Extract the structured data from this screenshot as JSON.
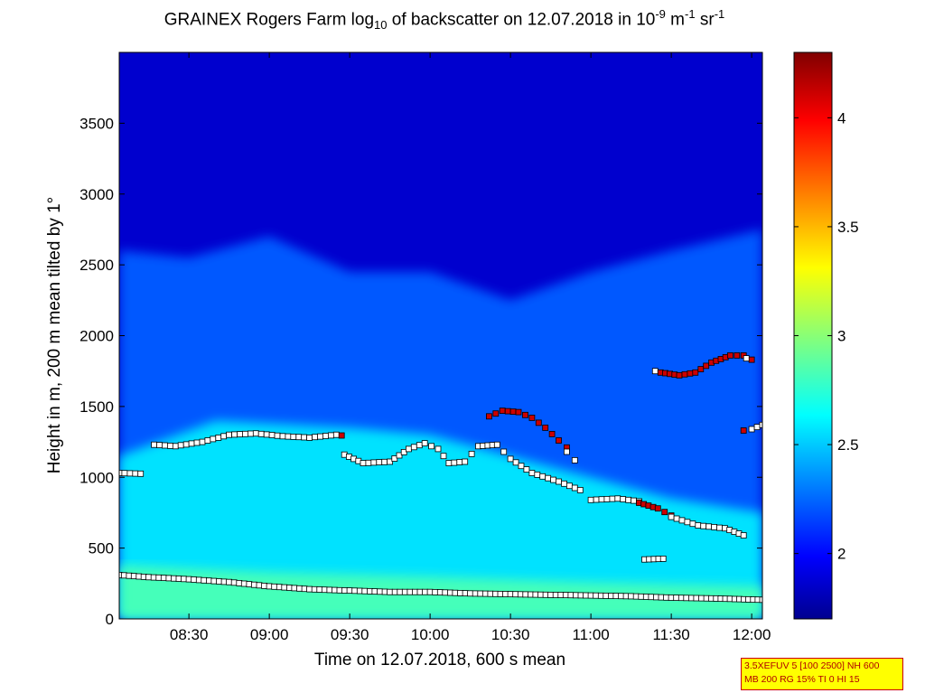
{
  "chart_data": {
    "type": "heatmap",
    "title": {
      "prefix": "GRAINEX Rogers Farm log",
      "sub": "10",
      "mid": " of backscatter on 12.07.2018 in 10",
      "sup1": "-9",
      "mid2": " m",
      "sup2": "-1",
      "mid3": " sr",
      "sup3": "-1"
    },
    "xlabel": "Time on 12.07.2018, 600 s mean",
    "ylabel": "Height in m, 200 m mean tilted by 1°",
    "xlim": [
      "08:04",
      "12:04"
    ],
    "ylim": [
      0,
      4000
    ],
    "x_ticks": [
      "08:30",
      "09:00",
      "09:30",
      "10:00",
      "10:30",
      "11:00",
      "11:30",
      "12:00"
    ],
    "y_ticks": [
      0,
      500,
      1000,
      1500,
      2000,
      2500,
      3000,
      3500
    ],
    "colorbar": {
      "range": [
        1.7,
        4.3
      ],
      "ticks": [
        "2",
        "2.5",
        "3",
        "3.5",
        "4"
      ],
      "colormap": "jet"
    },
    "field": {
      "surface_value": 2.85,
      "boundary_layer_value": 2.6,
      "free_troposphere_value": 2.25,
      "upper_value": 1.9,
      "transition_height_profile": [
        {
          "t": "08:04",
          "h": 2600
        },
        {
          "t": "08:30",
          "h": 2550
        },
        {
          "t": "09:00",
          "h": 2700
        },
        {
          "t": "09:30",
          "h": 2450
        },
        {
          "t": "10:00",
          "h": 2450
        },
        {
          "t": "10:30",
          "h": 2250
        },
        {
          "t": "11:00",
          "h": 2450
        },
        {
          "t": "11:30",
          "h": 2600
        },
        {
          "t": "12:04",
          "h": 2750
        }
      ]
    },
    "series": [
      {
        "marker": "white-square",
        "points": [
          [
            "08:04",
            310
          ],
          [
            "08:15",
            295
          ],
          [
            "08:30",
            280
          ],
          [
            "08:45",
            260
          ],
          [
            "09:00",
            230
          ],
          [
            "09:15",
            210
          ],
          [
            "09:30",
            200
          ],
          [
            "09:45",
            190
          ],
          [
            "10:00",
            190
          ],
          [
            "10:15",
            180
          ],
          [
            "10:30",
            175
          ],
          [
            "10:45",
            170
          ],
          [
            "11:00",
            165
          ],
          [
            "11:15",
            160
          ],
          [
            "11:30",
            150
          ],
          [
            "11:45",
            145
          ],
          [
            "12:04",
            135
          ]
        ]
      },
      {
        "marker": "white-square",
        "points": [
          [
            "08:04",
            1030
          ],
          [
            "08:12",
            1025
          ]
        ]
      },
      {
        "marker": "white-square",
        "points": [
          [
            "08:17",
            1230
          ],
          [
            "08:25",
            1220
          ],
          [
            "08:35",
            1250
          ],
          [
            "08:45",
            1300
          ],
          [
            "08:55",
            1310
          ],
          [
            "09:05",
            1290
          ],
          [
            "09:15",
            1280
          ],
          [
            "09:25",
            1300
          ]
        ]
      },
      {
        "marker": "red-square",
        "points": [
          [
            "09:27",
            1295
          ]
        ]
      },
      {
        "marker": "white-square",
        "points": [
          [
            "09:28",
            1160
          ],
          [
            "09:35",
            1100
          ],
          [
            "09:45",
            1110
          ],
          [
            "09:52",
            1200
          ],
          [
            "09:58",
            1240
          ],
          [
            "10:03",
            1200
          ],
          [
            "10:07",
            1100
          ],
          [
            "10:13",
            1110
          ],
          [
            "10:18",
            1220
          ],
          [
            "10:25",
            1230
          ],
          [
            "10:30",
            1130
          ],
          [
            "10:38",
            1030
          ],
          [
            "10:48",
            970
          ],
          [
            "10:56",
            910
          ]
        ]
      },
      {
        "marker": "red-square",
        "points": [
          [
            "10:22",
            1430
          ],
          [
            "10:27",
            1470
          ],
          [
            "10:33",
            1460
          ],
          [
            "10:38",
            1420
          ],
          [
            "10:43",
            1350
          ],
          [
            "10:48",
            1260
          ],
          [
            "10:51",
            1210
          ]
        ]
      },
      {
        "marker": "white-square",
        "points": [
          [
            "10:51",
            1180
          ],
          [
            "10:54",
            1120
          ]
        ]
      },
      {
        "marker": "white-square",
        "points": [
          [
            "11:00",
            840
          ],
          [
            "11:10",
            850
          ],
          [
            "11:18",
            830
          ]
        ]
      },
      {
        "marker": "red-square",
        "points": [
          [
            "11:18",
            820
          ],
          [
            "11:25",
            780
          ],
          [
            "11:30",
            730
          ]
        ]
      },
      {
        "marker": "white-square",
        "points": [
          [
            "11:30",
            720
          ],
          [
            "11:40",
            660
          ],
          [
            "11:50",
            640
          ],
          [
            "11:57",
            590
          ]
        ]
      },
      {
        "marker": "white-square",
        "points": [
          [
            "11:20",
            420
          ],
          [
            "11:27",
            425
          ]
        ]
      },
      {
        "marker": "white-square",
        "points": [
          [
            "11:24",
            1750
          ]
        ]
      },
      {
        "marker": "red-square",
        "points": [
          [
            "11:26",
            1740
          ],
          [
            "11:33",
            1720
          ],
          [
            "11:39",
            1740
          ],
          [
            "11:45",
            1810
          ],
          [
            "11:52",
            1860
          ],
          [
            "11:57",
            1860
          ],
          [
            "12:00",
            1830
          ]
        ]
      },
      {
        "marker": "white-square",
        "points": [
          [
            "11:58",
            1840
          ]
        ]
      },
      {
        "marker": "red-square",
        "points": [
          [
            "11:57",
            1330
          ]
        ]
      },
      {
        "marker": "white-square",
        "points": [
          [
            "12:00",
            1340
          ],
          [
            "12:04",
            1370
          ]
        ]
      }
    ]
  },
  "info_box": {
    "line1": "3.5XEFUV 5 [100 2500] NH 600",
    "line2": "MB 200 RG 15% TI 0 HI 15"
  }
}
